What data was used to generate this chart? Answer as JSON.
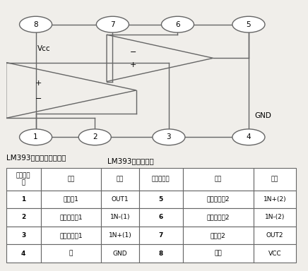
{
  "title_diagram": "LM393内部结构图",
  "table_title": "LM393引脚功能排列表：",
  "table_headers": [
    "引出端序\n号",
    "功能",
    "符号",
    "引出端序号",
    "功能",
    "符号"
  ],
  "table_rows": [
    [
      "1",
      "输出端1",
      "OUT1",
      "5",
      "正向输入端2",
      "1N+(2)"
    ],
    [
      "2",
      "反向输入端1",
      "1N-(1)",
      "6",
      "反向输入端2",
      "1N-(2)"
    ],
    [
      "3",
      "正向输入端1",
      "1N+(1)",
      "7",
      "输出端2",
      "OUT2"
    ],
    [
      "4",
      "地",
      "GND",
      "8",
      "电源",
      "VCC"
    ]
  ],
  "bg_color": "#f0eeea",
  "line_color": "#666666",
  "text_color": "#000000"
}
